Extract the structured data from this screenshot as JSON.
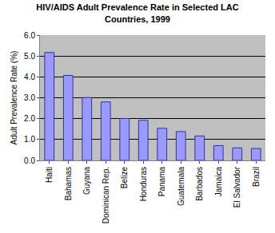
{
  "chart_data": {
    "type": "bar",
    "title": "HIV/AIDS Adult Prevalence Rate in Selected LAC Countries, 1999",
    "y_label": "Adult Prevalence Rate (%)",
    "categories": [
      "Haiti",
      "Bahamas",
      "Guyana",
      "Dominican Rep.",
      "Belize",
      "Honduras",
      "Panama",
      "Guatemala",
      "Barbados",
      "Jamaica",
      "El Salvador",
      "Brazil"
    ],
    "values": [
      5.17,
      4.07,
      3.01,
      2.8,
      2.01,
      1.92,
      1.54,
      1.38,
      1.17,
      0.71,
      0.6,
      0.57
    ],
    "color": "#9999ff",
    "ylim": [
      0,
      6
    ],
    "yticks": [
      {
        "value": 0,
        "label": "0.0"
      },
      {
        "value": 1,
        "label": "1.0"
      },
      {
        "value": 2,
        "label": "2.0"
      },
      {
        "value": 3,
        "label": "3.0"
      },
      {
        "value": 4,
        "label": "4.0"
      },
      {
        "value": 5,
        "label": "5.0"
      },
      {
        "value": 6,
        "label": "6.0"
      }
    ],
    "grid": true
  }
}
